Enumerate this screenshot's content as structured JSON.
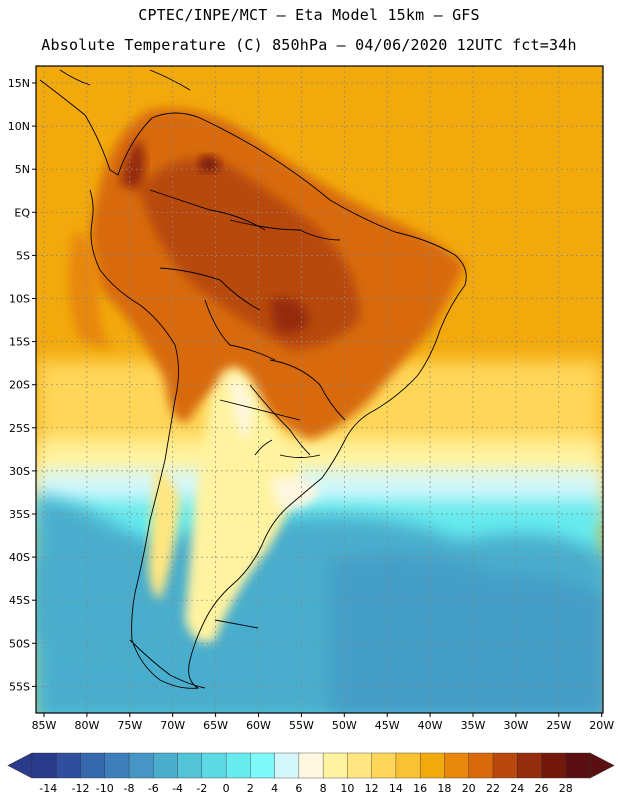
{
  "header": {
    "line1": "CPTEC/INPE/MCT –  Eta Model 15km – GFS",
    "line2": "Absolute Temperature (C) 850hPa – 04/06/2020 12UTC fct=34h"
  },
  "map": {
    "lat_labels": [
      "15N",
      "10N",
      "5N",
      "EQ",
      "5S",
      "10S",
      "15S",
      "20S",
      "25S",
      "30S",
      "35S",
      "40S",
      "45S",
      "50S",
      "55S"
    ],
    "lon_labels": [
      "85W",
      "80W",
      "75W",
      "70W",
      "65W",
      "60W",
      "55W",
      "50W",
      "45W",
      "40W",
      "35W",
      "30W",
      "25W",
      "20W"
    ]
  },
  "colorbar": {
    "ticks": [
      "-14",
      "-12",
      "-10",
      "-8",
      "-6",
      "-4",
      "-2",
      "0",
      "2",
      "4",
      "6",
      "8",
      "10",
      "12",
      "14",
      "16",
      "18",
      "20",
      "22",
      "24",
      "26",
      "28"
    ],
    "colors": [
      "#2a3a8c",
      "#2f4f9e",
      "#3568ad",
      "#3d7fbb",
      "#4596c5",
      "#4aaecd",
      "#52c4d8",
      "#5cd9e5",
      "#66ebef",
      "#7ef8f8",
      "#d4f7fb",
      "#fff7e0",
      "#fff3a0",
      "#ffe680",
      "#ffd658",
      "#f9c233",
      "#f2a90c",
      "#e8870a",
      "#d86a0c",
      "#b8480c",
      "#952c0c",
      "#73190c",
      "#5a1010"
    ]
  }
}
